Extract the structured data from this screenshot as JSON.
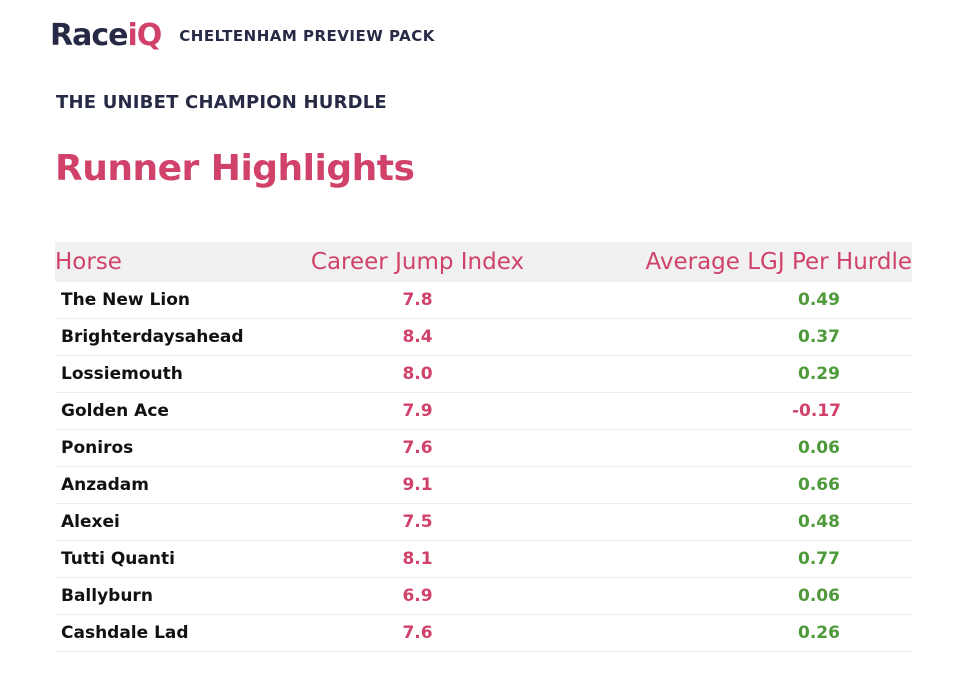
{
  "brand": {
    "logo_race": "Race",
    "logo_iq": "iQ",
    "pack_title": "CHELTENHAM PREVIEW PACK"
  },
  "race_name": "THE UNIBET CHAMPION HURDLE",
  "section_title": "Runner Highlights",
  "table": {
    "headers": {
      "horse": "Horse",
      "career_jump_index": "Career Jump Index",
      "average_lgj": "Average LGJ Per Hurdle"
    },
    "rows": [
      {
        "horse": "The New Lion",
        "cji": "7.8",
        "lgj": "0.49"
      },
      {
        "horse": "Brighterdaysahead",
        "cji": "8.4",
        "lgj": "0.37"
      },
      {
        "horse": "Lossiemouth",
        "cji": "8.0",
        "lgj": "0.29"
      },
      {
        "horse": "Golden Ace",
        "cji": "7.9",
        "lgj": "-0.17"
      },
      {
        "horse": "Poniros",
        "cji": "7.6",
        "lgj": "0.06"
      },
      {
        "horse": "Anzadam",
        "cji": "9.1",
        "lgj": "0.66"
      },
      {
        "horse": "Alexei",
        "cji": "7.5",
        "lgj": "0.48"
      },
      {
        "horse": "Tutti Quanti",
        "cji": "8.1",
        "lgj": "0.77"
      },
      {
        "horse": "Ballyburn",
        "cji": "6.9",
        "lgj": "0.06"
      },
      {
        "horse": "Cashdale Lad",
        "cji": "7.6",
        "lgj": "0.26"
      }
    ]
  },
  "colors": {
    "brand_navy": "#262a45",
    "accent_pink": "#d0426a",
    "positive_green": "#4e9a3a",
    "header_bg": "#f1f1f1"
  }
}
